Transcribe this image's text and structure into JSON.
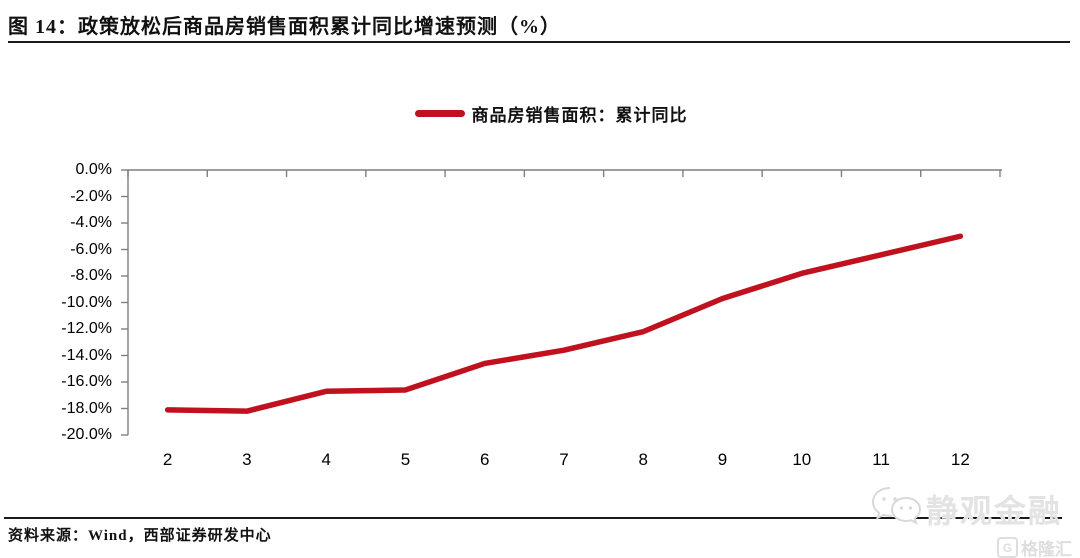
{
  "header": {
    "title": "图 14：政策放松后商品房销售面积累计同比增速预测（%）"
  },
  "legend": {
    "label": "商品房销售面积：累计同比"
  },
  "chart_data": {
    "type": "line",
    "title": "政策放松后商品房销售面积累计同比增速预测（%）",
    "categories": [
      2,
      3,
      4,
      5,
      6,
      7,
      8,
      9,
      10,
      11,
      12
    ],
    "series": [
      {
        "name": "商品房销售面积：累计同比",
        "values": [
          -18.1,
          -18.2,
          -16.7,
          -16.6,
          -14.6,
          -13.6,
          -12.2,
          -9.7,
          -7.8,
          -6.4,
          -5.0
        ]
      }
    ],
    "xlabel": "",
    "ylabel": "",
    "ylim": [
      -20,
      0
    ],
    "ytick_step": 2,
    "ytick_labels": [
      "0.0%",
      "-2.0%",
      "-4.0%",
      "-6.0%",
      "-8.0%",
      "-10.0%",
      "-12.0%",
      "-14.0%",
      "-16.0%",
      "-18.0%",
      "-20.0%"
    ],
    "grid": false,
    "legend_position": "top-center",
    "line_color": "#c0111e",
    "axis_color": "#7f7f7f"
  },
  "footer": {
    "source": "资料来源：Wind，西部证券研发中心"
  },
  "watermark": {
    "wechat_name": "静观金融",
    "platform": "格隆汇",
    "logo_letter": "G"
  }
}
